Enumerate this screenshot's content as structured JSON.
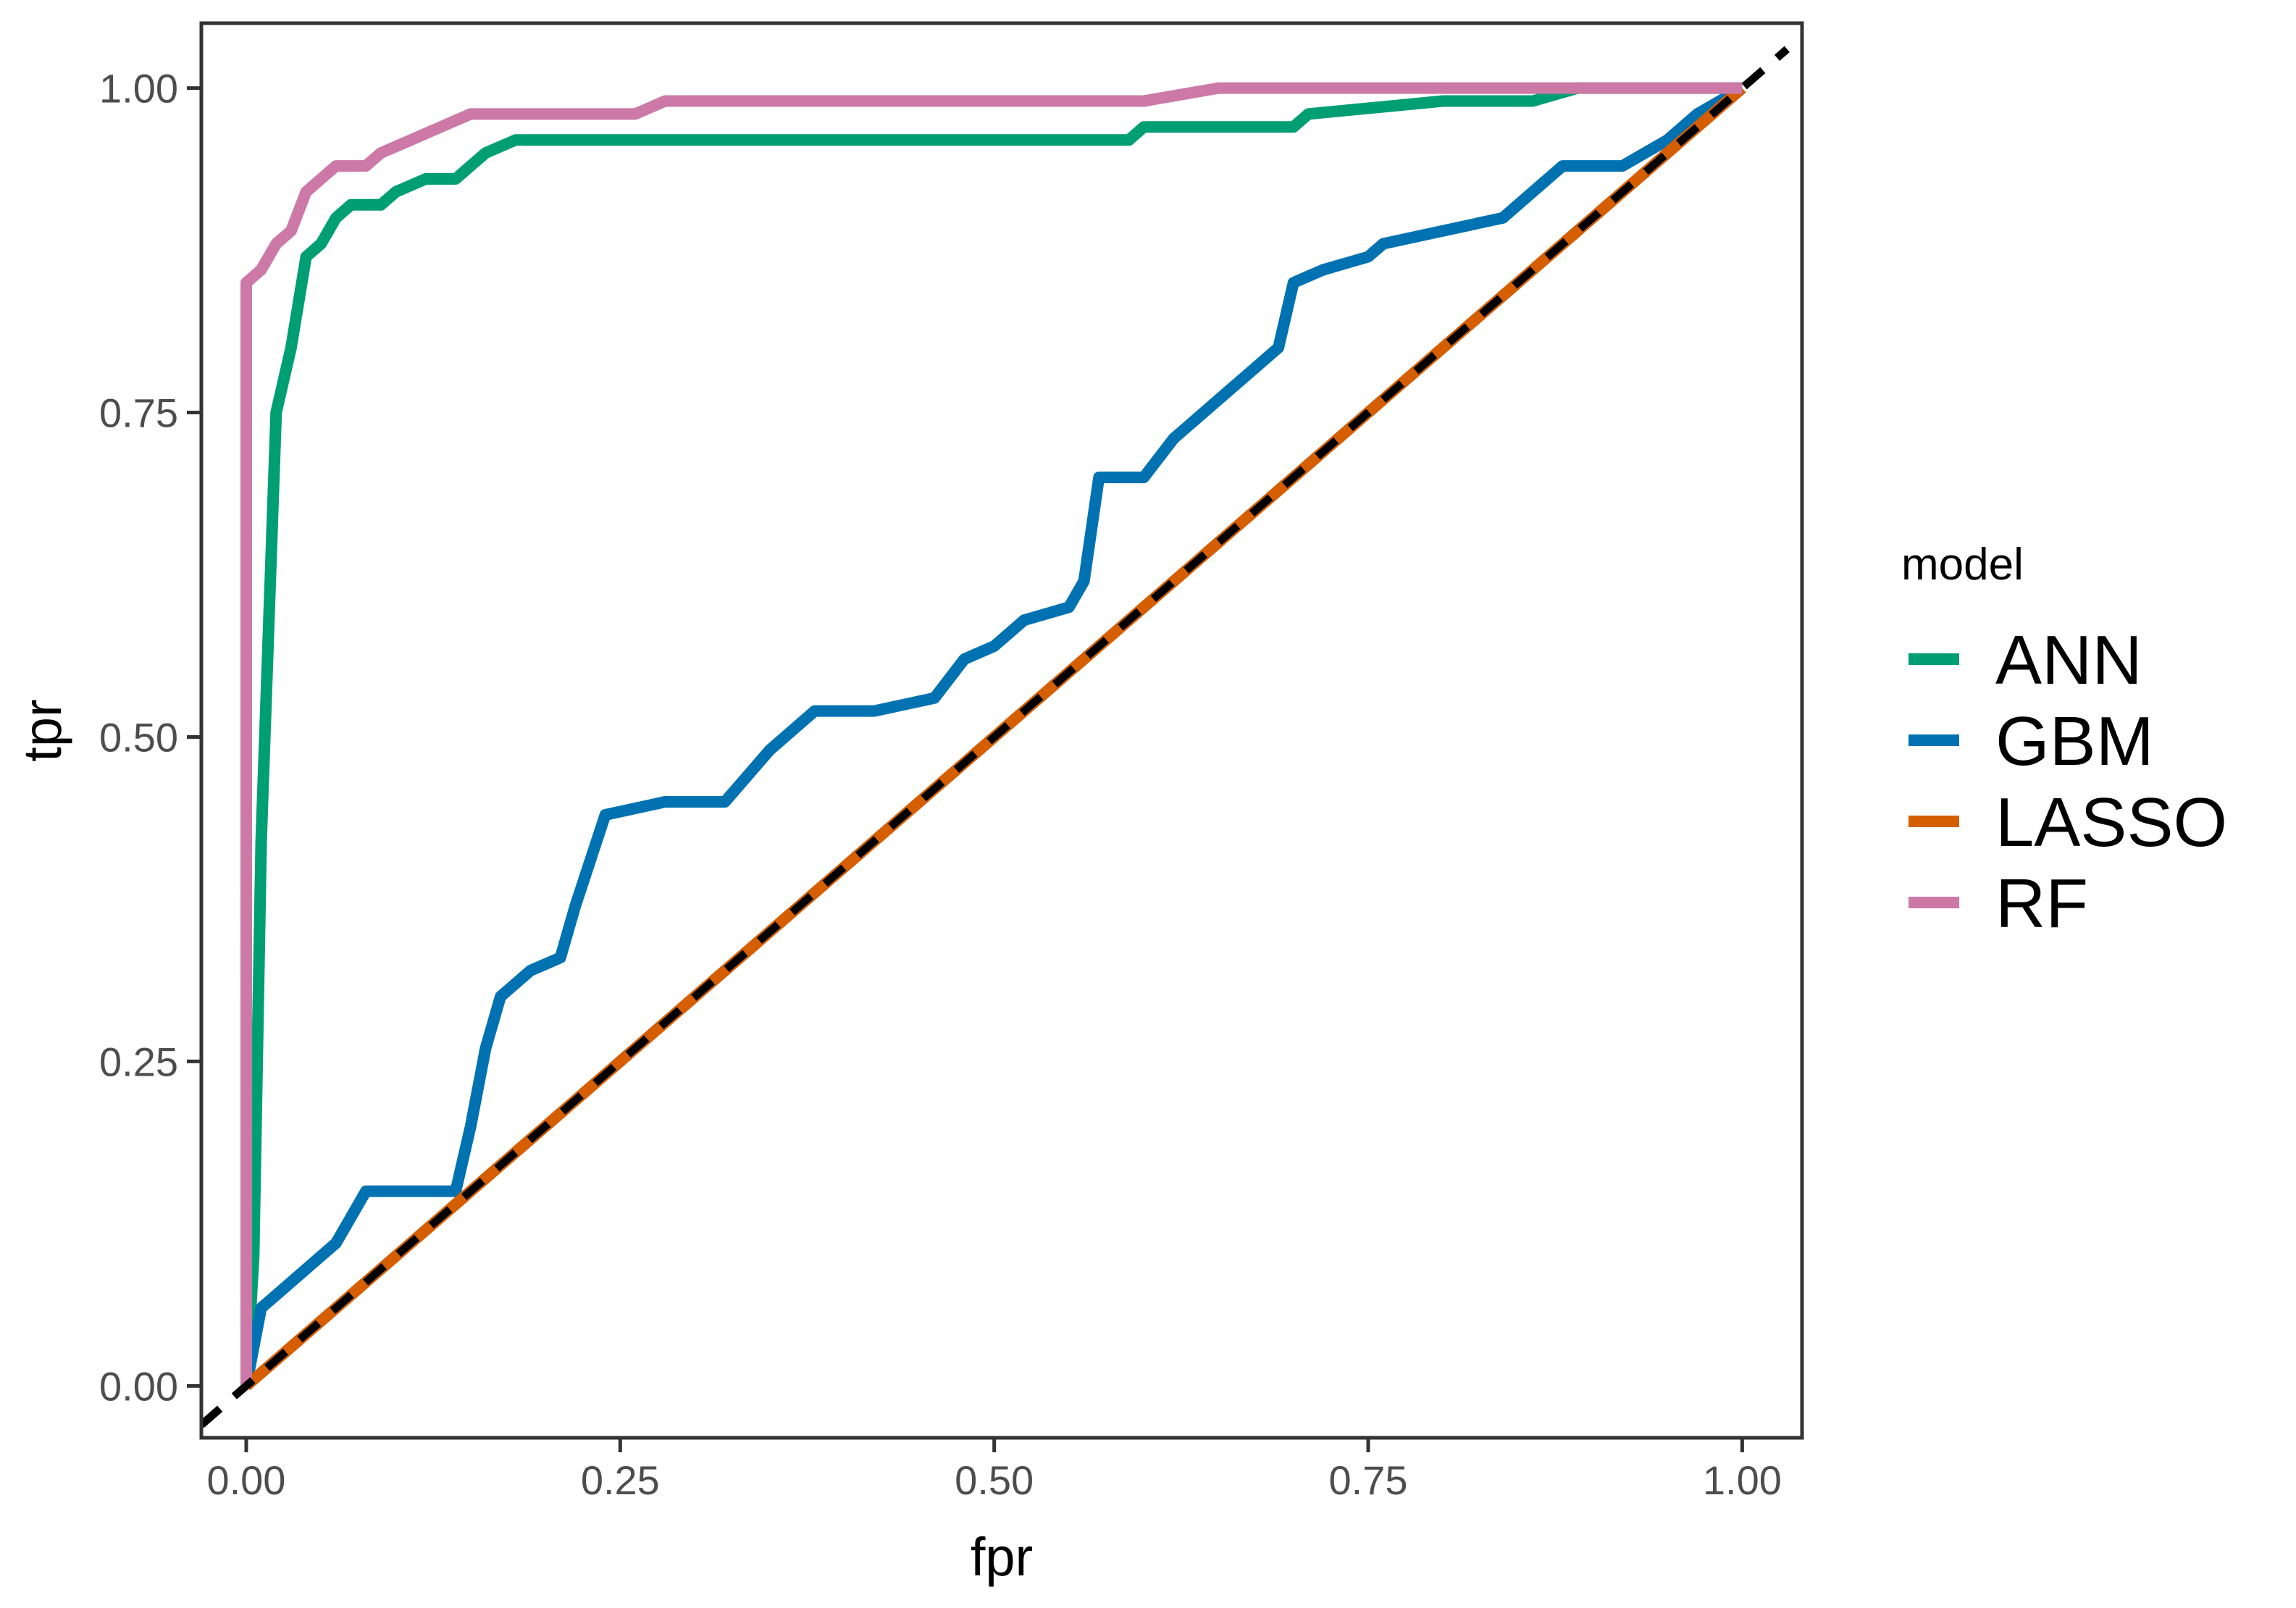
{
  "chart_data": {
    "type": "line",
    "title": "",
    "xlabel": "fpr",
    "ylabel": "tpr",
    "xlim": [
      -0.03,
      1.04
    ],
    "ylim": [
      -0.04,
      1.05
    ],
    "x_ticks": [
      0.0,
      0.25,
      0.5,
      0.75,
      1.0
    ],
    "x_tick_labels": [
      "0.00",
      "0.25",
      "0.50",
      "0.75",
      "1.00"
    ],
    "y_ticks": [
      0.0,
      0.25,
      0.5,
      0.75,
      1.0
    ],
    "y_tick_labels": [
      "0.00",
      "0.25",
      "0.50",
      "0.75",
      "1.00"
    ],
    "grid": false,
    "legend": {
      "title": "model",
      "position": "right"
    },
    "diagonal_reference": {
      "style": "dashed",
      "color": "#000000",
      "from": [
        -0.03,
        -0.03
      ],
      "to": [
        1.03,
        1.03
      ]
    },
    "series": [
      {
        "name": "ANN",
        "color": "#009E73",
        "points": [
          [
            0.0,
            0.0
          ],
          [
            0.005,
            0.1
          ],
          [
            0.01,
            0.42
          ],
          [
            0.02,
            0.75
          ],
          [
            0.03,
            0.8
          ],
          [
            0.04,
            0.87
          ],
          [
            0.05,
            0.88
          ],
          [
            0.06,
            0.9
          ],
          [
            0.07,
            0.91
          ],
          [
            0.09,
            0.91
          ],
          [
            0.1,
            0.92
          ],
          [
            0.12,
            0.93
          ],
          [
            0.14,
            0.93
          ],
          [
            0.16,
            0.95
          ],
          [
            0.18,
            0.96
          ],
          [
            0.3,
            0.96
          ],
          [
            0.45,
            0.96
          ],
          [
            0.59,
            0.96
          ],
          [
            0.6,
            0.97
          ],
          [
            0.7,
            0.97
          ],
          [
            0.71,
            0.98
          ],
          [
            0.8,
            0.99
          ],
          [
            0.86,
            0.99
          ],
          [
            0.89,
            1.0
          ],
          [
            1.0,
            1.0
          ]
        ]
      },
      {
        "name": "GBM",
        "color": "#0072B2",
        "points": [
          [
            0.0,
            0.0
          ],
          [
            0.01,
            0.06
          ],
          [
            0.02,
            0.07
          ],
          [
            0.04,
            0.09
          ],
          [
            0.06,
            0.11
          ],
          [
            0.08,
            0.15
          ],
          [
            0.14,
            0.15
          ],
          [
            0.15,
            0.2
          ],
          [
            0.16,
            0.26
          ],
          [
            0.17,
            0.3
          ],
          [
            0.19,
            0.32
          ],
          [
            0.21,
            0.33
          ],
          [
            0.22,
            0.37
          ],
          [
            0.24,
            0.44
          ],
          [
            0.28,
            0.45
          ],
          [
            0.32,
            0.45
          ],
          [
            0.35,
            0.49
          ],
          [
            0.38,
            0.52
          ],
          [
            0.42,
            0.52
          ],
          [
            0.46,
            0.53
          ],
          [
            0.48,
            0.56
          ],
          [
            0.5,
            0.57
          ],
          [
            0.52,
            0.59
          ],
          [
            0.55,
            0.6
          ],
          [
            0.56,
            0.62
          ],
          [
            0.57,
            0.7
          ],
          [
            0.6,
            0.7
          ],
          [
            0.62,
            0.73
          ],
          [
            0.65,
            0.76
          ],
          [
            0.67,
            0.78
          ],
          [
            0.69,
            0.8
          ],
          [
            0.7,
            0.85
          ],
          [
            0.72,
            0.86
          ],
          [
            0.75,
            0.87
          ],
          [
            0.76,
            0.88
          ],
          [
            0.8,
            0.89
          ],
          [
            0.84,
            0.9
          ],
          [
            0.86,
            0.92
          ],
          [
            0.88,
            0.94
          ],
          [
            0.92,
            0.94
          ],
          [
            0.95,
            0.96
          ],
          [
            0.97,
            0.98
          ],
          [
            1.0,
            1.0
          ]
        ]
      },
      {
        "name": "LASSO",
        "color": "#D55E00",
        "points": [
          [
            0.0,
            0.0
          ],
          [
            1.0,
            1.0
          ]
        ]
      },
      {
        "name": "RF",
        "color": "#CC79A7",
        "points": [
          [
            0.0,
            0.0
          ],
          [
            0.0,
            0.85
          ],
          [
            0.01,
            0.86
          ],
          [
            0.02,
            0.88
          ],
          [
            0.03,
            0.89
          ],
          [
            0.04,
            0.92
          ],
          [
            0.05,
            0.93
          ],
          [
            0.06,
            0.94
          ],
          [
            0.08,
            0.94
          ],
          [
            0.09,
            0.95
          ],
          [
            0.11,
            0.96
          ],
          [
            0.13,
            0.97
          ],
          [
            0.15,
            0.98
          ],
          [
            0.26,
            0.98
          ],
          [
            0.28,
            0.99
          ],
          [
            0.55,
            0.99
          ],
          [
            0.6,
            0.99
          ],
          [
            0.65,
            1.0
          ],
          [
            0.8,
            1.0
          ],
          [
            1.0,
            1.0
          ]
        ]
      }
    ]
  }
}
